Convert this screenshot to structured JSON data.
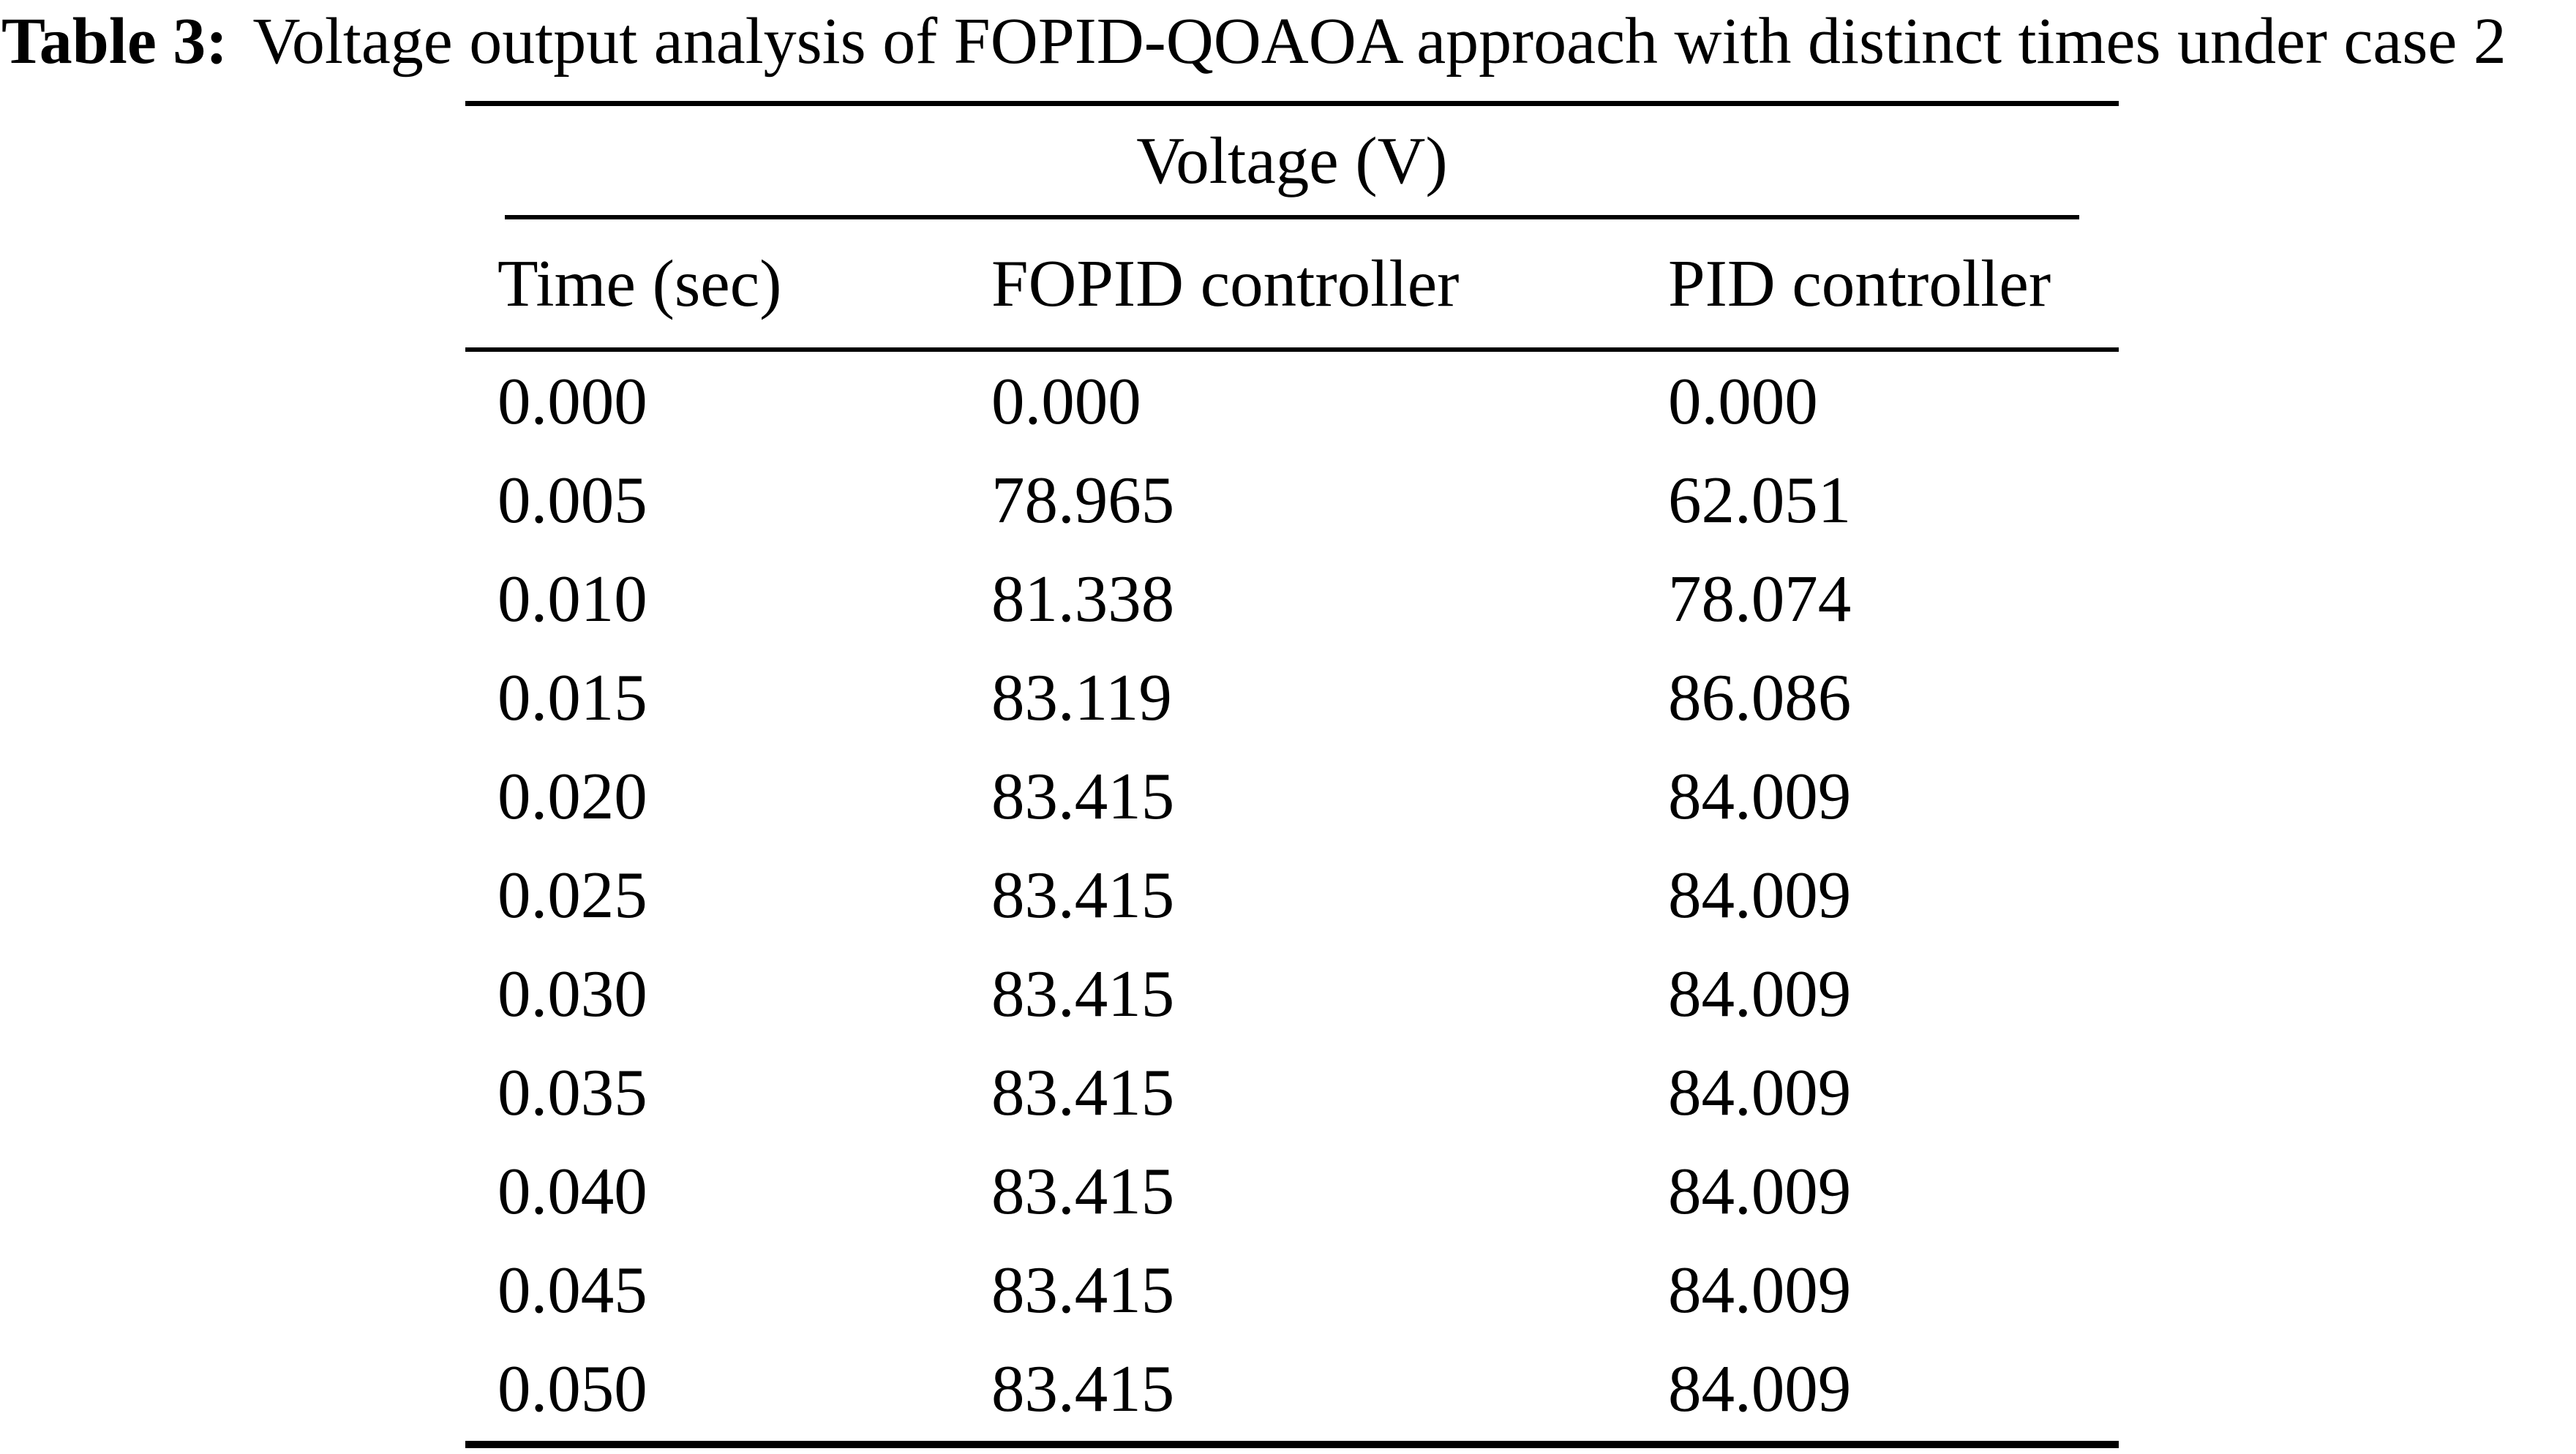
{
  "page": {
    "background": "#ffffff",
    "text_color": "#000000",
    "rule_color": "#000000"
  },
  "caption": {
    "label": "Table 3:",
    "text": "Voltage output analysis of FOPID-QOAOA approach with distinct times under case 2"
  },
  "table": {
    "spanner_header": "Voltage (V)",
    "columns": [
      "Time (sec)",
      "FOPID controller",
      "PID controller"
    ],
    "rows": [
      [
        "0.000",
        "0.000",
        "0.000"
      ],
      [
        "0.005",
        "78.965",
        "62.051"
      ],
      [
        "0.010",
        "81.338",
        "78.074"
      ],
      [
        "0.015",
        "83.119",
        "86.086"
      ],
      [
        "0.020",
        "83.415",
        "84.009"
      ],
      [
        "0.025",
        "83.415",
        "84.009"
      ],
      [
        "0.030",
        "83.415",
        "84.009"
      ],
      [
        "0.035",
        "83.415",
        "84.009"
      ],
      [
        "0.040",
        "83.415",
        "84.009"
      ],
      [
        "0.045",
        "83.415",
        "84.009"
      ],
      [
        "0.050",
        "83.415",
        "84.009"
      ]
    ]
  }
}
